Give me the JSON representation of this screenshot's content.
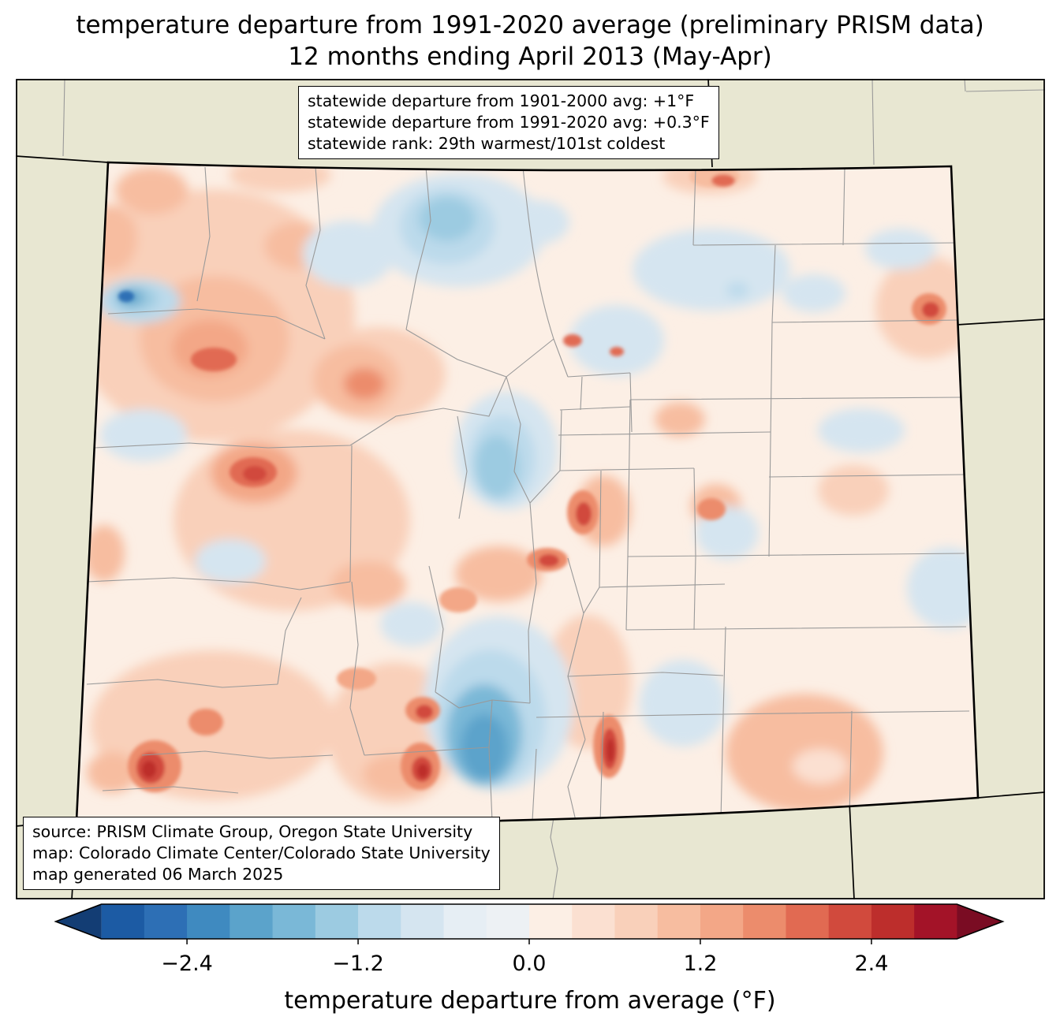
{
  "title": {
    "line1": "temperature departure from 1991-2020 average (preliminary PRISM data)",
    "line2": "12 months ending April 2013 (May-Apr)"
  },
  "stats_box": {
    "lines": [
      "statewide departure from 1901-2000 avg: +1°F",
      "statewide departure from 1991-2020 avg: +0.3°F",
      "statewide rank: 29th warmest/101st coldest"
    ]
  },
  "source_box": {
    "lines": [
      "source: PRISM Climate Group, Oregon State University",
      "map: Colorado Climate Center/Colorado State University",
      "map generated 06 March 2025"
    ]
  },
  "colorbar": {
    "label": "temperature departure from average (°F)",
    "ticks": [
      "−2.4",
      "−1.2",
      "0.0",
      "1.2",
      "2.4"
    ],
    "tick_values": [
      -2.4,
      -1.2,
      0.0,
      1.2,
      2.4
    ],
    "range": [
      -3.0,
      3.0
    ],
    "segment_step_f": 0.3,
    "segment_colors": [
      "#1c5ba4",
      "#2d6fb5",
      "#3f8ac0",
      "#5ba3cb",
      "#7ab8d7",
      "#9ccbe1",
      "#bcdaeb",
      "#d5e5f0",
      "#e6eef4",
      "#edf1f4",
      "#fcefe5",
      "#fbe0d1",
      "#f9d0ba",
      "#f7bda0",
      "#f3a787",
      "#ec8c6c",
      "#e16a52",
      "#d14a3d",
      "#bd2e2c",
      "#a31328"
    ],
    "under_color": "#133d74",
    "over_color": "#7a0c23"
  },
  "map": {
    "background_color": "#e8e7d2",
    "state_outline_color": "#000000",
    "neighbor_line_color": "#000000",
    "county_line_color": "#999999"
  }
}
